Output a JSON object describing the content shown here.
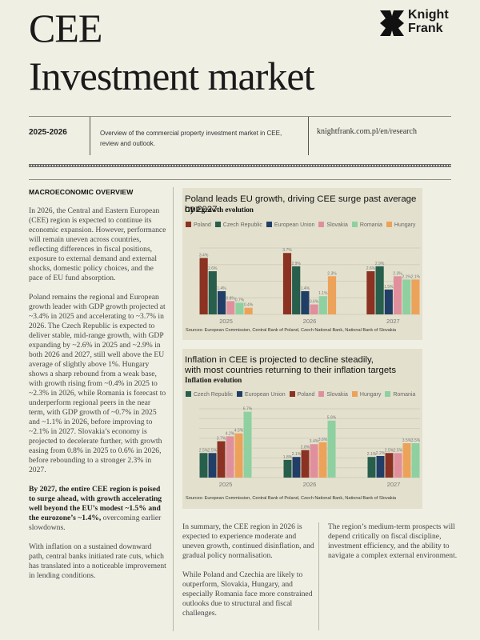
{
  "header": {
    "title_line1": "CEE",
    "title_line2": "Investment market",
    "logo_line1": "Knight",
    "logo_line2": "Frank",
    "period": "2025-2026",
    "description": "Overview of the commercial property investment market in CEE, review and outlook.",
    "url": "knightfrank.com.pl/en/research"
  },
  "left_column": {
    "heading": "MACROECONOMIC OVERVIEW",
    "para1": "In 2026, the Central and Eastern European (CEE) region is expected to continue its economic expansion. However, performance will remain uneven across countries, reflecting differences in fiscal positions, exposure to external demand and external shocks, domestic policy choices, and the pace of EU fund absorption.",
    "para2": "Poland remains the regional and European growth leader with GDP growth projected at ~3.4% in 2025 and accelerating to ~3.7% in 2026. The Czech Republic is expected to deliver stable, mid-range growth, with GDP expanding by ~2.6% in 2025 and ~2.9% in both 2026 and 2027, still well above the EU average of slightly above 1%.  Hungary shows a sharp rebound from a weak base, with growth rising from ~0.4% in 2025 to ~2.3% in 2026, while Romania is forecast to underperform regional peers in the near term, with GDP growth of ~0.7% in 2025 and ~1.1% in 2026, before improving to ~2.1% in 2027. Slovakia’s economy is projected to decelerate further, with growth easing from 0.8% in 2025 to 0.6% in 2026, before rebounding to a stronger 2.3% in 2027.",
    "para3_bold": "By 2027, the entire CEE region is poised to surge ahead, with growth accelerating well beyond the EU’s modest ~1.5% and the eurozone’s ~1.4%,",
    "para3_rest": " overcoming earlier slowdowns.",
    "para4": "With inflation on a sustained downward path, central banks initiated rate cuts, which has translated into a noticeable improvement in lending conditions."
  },
  "middle_column": {
    "para1": "In summary, the CEE region in 2026 is expected to experience moderate and uneven growth, continued disinflation, and gradual policy normalisation.",
    "para2": "While Poland and Czechia are likely to outperform, Slovakia, Hungary, and especially Romania face more constrained outlooks due to structural and fiscal challenges."
  },
  "right_column": {
    "para1": "The region’s medium-term prospects will depend critically on fiscal discipline, investment efficiency, and the ability to navigate a complex external environment."
  },
  "chart_data": [
    {
      "type": "bar",
      "title": "Poland leads EU growth, driving CEE surge past average by 2027",
      "subtitle": "GDP growth evolution",
      "xlabel": "",
      "ylabel": "",
      "ylim": [
        0,
        4
      ],
      "grid": true,
      "legend": "top-left",
      "categories": [
        "2025",
        "2026",
        "2027"
      ],
      "series": [
        {
          "name": "Poland",
          "color": "#8b3222",
          "values": [
            3.4,
            3.7,
            2.6
          ],
          "labels": [
            "3.4%",
            "3.7%",
            "2.6%"
          ]
        },
        {
          "name": "Czech Republic",
          "color": "#275e4c",
          "values": [
            2.6,
            2.9,
            2.9
          ],
          "labels": [
            "2.6%",
            "2.9%",
            "2.9%"
          ]
        },
        {
          "name": "European Union",
          "color": "#213f66",
          "values": [
            1.4,
            1.4,
            1.5
          ],
          "labels": [
            "1.4%",
            "1.4%",
            "1.5%"
          ]
        },
        {
          "name": "Slovakia",
          "color": "#e0909c",
          "values": [
            0.8,
            0.6,
            2.3
          ],
          "labels": [
            "0.8%",
            "0.6%",
            "2.3%"
          ]
        },
        {
          "name": "Romania",
          "color": "#8fd0a1",
          "values": [
            0.7,
            1.1,
            2.1
          ],
          "labels": [
            "0.7%",
            "1.1%",
            "2.1%"
          ]
        },
        {
          "name": "Hungary",
          "color": "#eda25a",
          "values": [
            0.4,
            2.3,
            2.1
          ],
          "labels": [
            "0.4%",
            "2.3%",
            "2.1%"
          ]
        }
      ],
      "source": "Sources: European Commission, Central Bank of Poland, Czech National Bank, National Bank of Slovakia"
    },
    {
      "type": "bar",
      "title": "Inflation in CEE is projected to decline steadily, with most countries returning to their inflation targets",
      "title_line1": "Inflation in CEE is projected to decline steadily,",
      "title_line2": "with most countries returning to their inflation targets",
      "subtitle": "Inflation evolution",
      "xlabel": "",
      "ylabel": "",
      "ylim": [
        0,
        7
      ],
      "grid": true,
      "legend": "top-left",
      "categories": [
        "2025",
        "2026",
        "2027"
      ],
      "series": [
        {
          "name": "Czech Republic",
          "color": "#275e4c",
          "values": [
            2.5,
            1.8,
            2.1
          ],
          "labels": [
            "2.5%",
            "1.8%",
            "2.1%"
          ]
        },
        {
          "name": "European Union",
          "color": "#213f66",
          "values": [
            2.5,
            2.1,
            2.2
          ],
          "labels": [
            "2.5%",
            "2.1%",
            "2.2%"
          ]
        },
        {
          "name": "Poland",
          "color": "#8b3222",
          "values": [
            3.7,
            2.8,
            2.5
          ],
          "labels": [
            "3.7%",
            "2.8%",
            "2.5%"
          ]
        },
        {
          "name": "Slovakia",
          "color": "#e0909c",
          "values": [
            4.2,
            3.4,
            2.5
          ],
          "labels": [
            "4.2%",
            "3.4%",
            "2.5%"
          ]
        },
        {
          "name": "Hungary",
          "color": "#eda25a",
          "values": [
            4.5,
            3.6,
            3.5
          ],
          "labels": [
            "4.5%",
            "3.6%",
            "3.5%"
          ]
        },
        {
          "name": "Romania",
          "color": "#8fd0a1",
          "values": [
            6.7,
            5.8,
            3.5
          ],
          "labels": [
            "6.7%",
            "5.8%",
            "3.5%"
          ]
        }
      ],
      "source": "Sources: European Commission, Central Bank of Poland, Czech National Bank, National Bank of Slovakia"
    }
  ]
}
